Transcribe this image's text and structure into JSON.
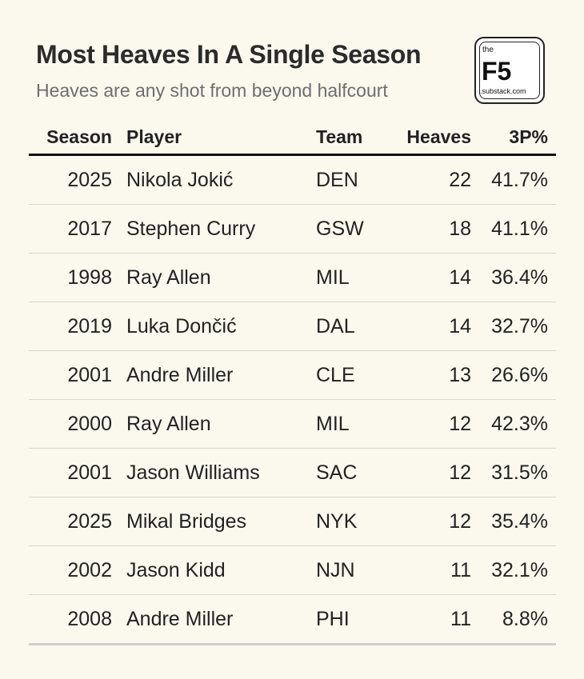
{
  "title": "Most Heaves In A Single Season",
  "subtitle": "Heaves are any shot from beyond halfcourt",
  "logo": {
    "the": "the",
    "name": "F5",
    "domain": ".substack.com"
  },
  "chart_data": {
    "type": "table",
    "columns": [
      "Season",
      "Player",
      "Team",
      "Heaves",
      "3P%"
    ],
    "rows": [
      [
        "2025",
        "Nikola Jokić",
        "DEN",
        "22",
        "41.7%"
      ],
      [
        "2017",
        "Stephen Curry",
        "GSW",
        "18",
        "41.1%"
      ],
      [
        "1998",
        "Ray Allen",
        "MIL",
        "14",
        "36.4%"
      ],
      [
        "2019",
        "Luka Dončić",
        "DAL",
        "14",
        "32.7%"
      ],
      [
        "2001",
        "Andre Miller",
        "CLE",
        "13",
        "26.6%"
      ],
      [
        "2000",
        "Ray Allen",
        "MIL",
        "12",
        "42.3%"
      ],
      [
        "2001",
        "Jason Williams",
        "SAC",
        "12",
        "31.5%"
      ],
      [
        "2025",
        "Mikal Bridges",
        "NYK",
        "12",
        "35.4%"
      ],
      [
        "2002",
        "Jason Kidd",
        "NJN",
        "11",
        "32.1%"
      ],
      [
        "2008",
        "Andre Miller",
        "PHI",
        "11",
        "8.8%"
      ]
    ]
  }
}
